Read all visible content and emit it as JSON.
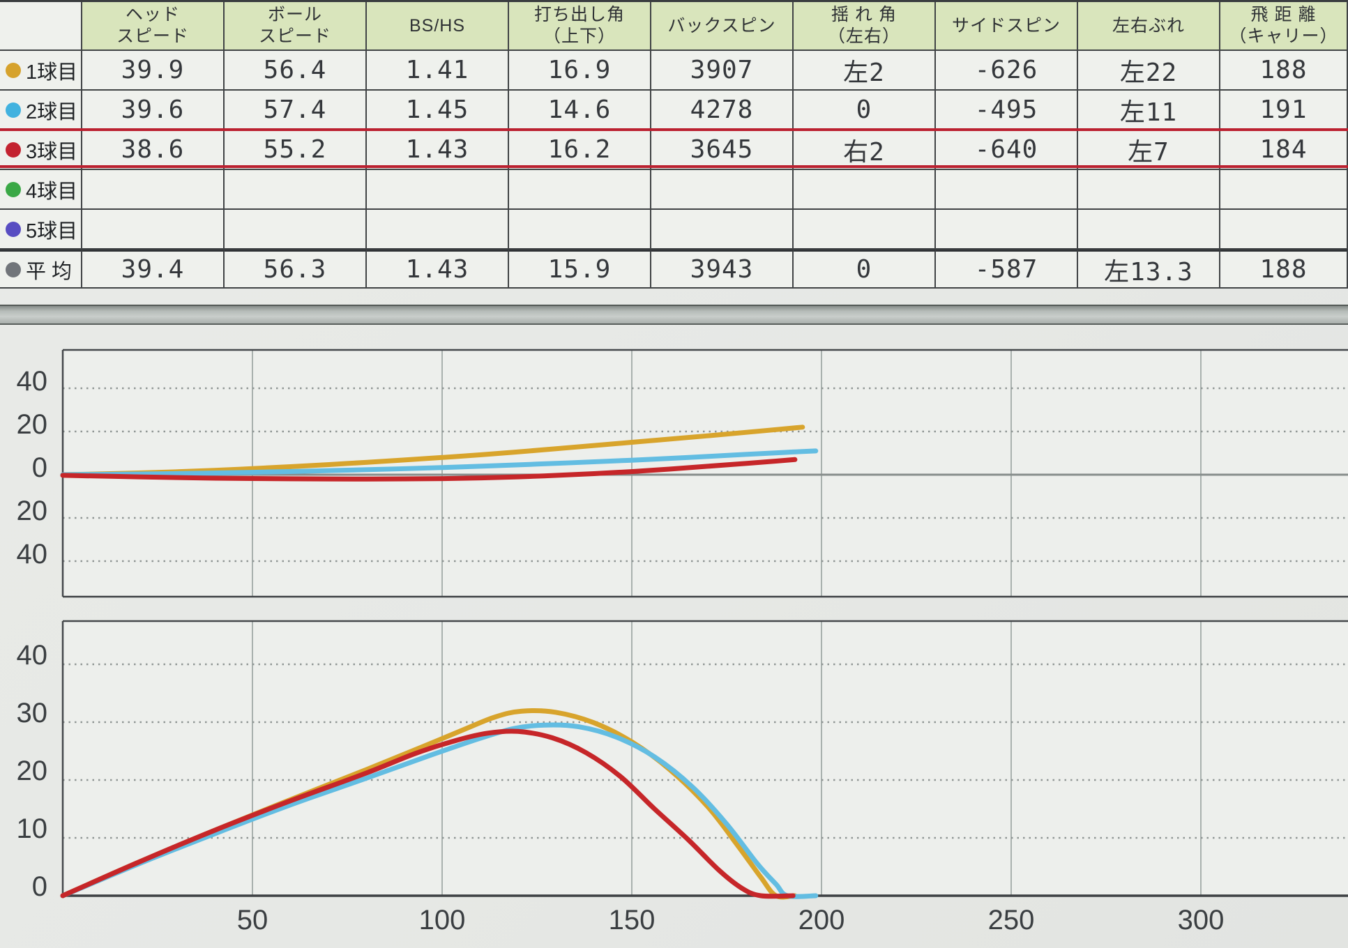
{
  "colors": {
    "header_bg": "#d9e5bc",
    "selection_red": "#bb2130",
    "grid_border": "#404345",
    "plot_bg": "#edefec",
    "dotted_grid": "#8f9694",
    "vertical_grid": "#a9b1ae",
    "zero_line": "#878d8b",
    "axis_text": "#3a3e41"
  },
  "table": {
    "corner_label": "",
    "columns": [
      {
        "id": "head_speed",
        "lines": [
          "ヘッド",
          "スピード"
        ]
      },
      {
        "id": "ball_speed",
        "lines": [
          "ボール",
          "スピード"
        ]
      },
      {
        "id": "bs_hs",
        "lines": [
          "BS/HS"
        ]
      },
      {
        "id": "launch_angle",
        "lines": [
          "打ち出し角",
          "（上下）"
        ]
      },
      {
        "id": "backspin",
        "lines": [
          "バックスピン"
        ]
      },
      {
        "id": "sway_angle",
        "lines": [
          "揺 れ 角",
          "（左右）"
        ]
      },
      {
        "id": "sidespin",
        "lines": [
          "サイドスピン"
        ]
      },
      {
        "id": "lr_deviation",
        "lines": [
          "左右ぶれ"
        ]
      },
      {
        "id": "carry",
        "lines": [
          "飛 距 離",
          "（キャリー）"
        ]
      }
    ],
    "rows": [
      {
        "label": "1球目",
        "dot_color": "#d6a22c",
        "selected": false,
        "average": false,
        "values": [
          "39.9",
          "56.4",
          "1.41",
          "16.9",
          "3907",
          "左2",
          "-626",
          "左22",
          "188"
        ]
      },
      {
        "label": "2球目",
        "dot_color": "#41b2df",
        "selected": false,
        "average": false,
        "values": [
          "39.6",
          "57.4",
          "1.45",
          "14.6",
          "4278",
          "0",
          "-495",
          "左11",
          "191"
        ]
      },
      {
        "label": "3球目",
        "dot_color": "#c32330",
        "selected": true,
        "average": false,
        "values": [
          "38.6",
          "55.2",
          "1.43",
          "16.2",
          "3645",
          "右2",
          "-640",
          "左7",
          "184"
        ]
      },
      {
        "label": "4球目",
        "dot_color": "#3aa846",
        "selected": false,
        "average": false,
        "values": [
          "",
          "",
          "",
          "",
          "",
          "",
          "",
          "",
          ""
        ]
      },
      {
        "label": "5球目",
        "dot_color": "#584dc2",
        "selected": false,
        "average": false,
        "values": [
          "",
          "",
          "",
          "",
          "",
          "",
          "",
          "",
          ""
        ]
      },
      {
        "label": "平 均",
        "dot_color": "#71757a",
        "selected": false,
        "average": true,
        "values": [
          "39.4",
          "56.3",
          "1.43",
          "15.9",
          "3943",
          "0",
          "-587",
          "左13.3",
          "188"
        ]
      }
    ]
  },
  "chart_data": [
    {
      "id": "top_view",
      "type": "line",
      "title": "",
      "xlabel": "",
      "ylabel": "",
      "x_unit": "yard",
      "x_gridlines": [
        50,
        100,
        150,
        200,
        250,
        300
      ],
      "x_tick_labels": [],
      "x_range": [
        0,
        340
      ],
      "y_ticks": [
        {
          "label": "40",
          "value": 40
        },
        {
          "label": "20",
          "value": 20
        },
        {
          "label": "0",
          "value": 0
        },
        {
          "label": "20",
          "value": -20
        },
        {
          "label": "40",
          "value": -40
        }
      ],
      "y_range": [
        -57,
        57
      ],
      "zero_line": true,
      "grid": "horizontal-dotted, vertical-solid",
      "legend": "none",
      "series": [
        {
          "name": "1球目",
          "color": "#d8a42c",
          "points": [
            [
              0,
              0
            ],
            [
              20,
              0.8
            ],
            [
              40,
              2
            ],
            [
              60,
              3.7
            ],
            [
              75,
              5.2
            ],
            [
              90,
              6.8
            ],
            [
              110,
              9.2
            ],
            [
              130,
              12
            ],
            [
              150,
              15
            ],
            [
              170,
              18
            ],
            [
              185,
              20.4
            ],
            [
              195,
              22
            ]
          ]
        },
        {
          "name": "2球目",
          "color": "#63bde2",
          "points": [
            [
              0,
              0
            ],
            [
              25,
              0.4
            ],
            [
              50,
              1.1
            ],
            [
              75,
              2.1
            ],
            [
              100,
              3.3
            ],
            [
              125,
              4.9
            ],
            [
              150,
              6.7
            ],
            [
              165,
              8
            ],
            [
              180,
              9.4
            ],
            [
              190,
              10.3
            ],
            [
              198.5,
              11
            ]
          ]
        },
        {
          "name": "3球目",
          "color": "#c62629",
          "points": [
            [
              0,
              -0.3
            ],
            [
              20,
              -1
            ],
            [
              40,
              -1.6
            ],
            [
              60,
              -1.9
            ],
            [
              80,
              -2
            ],
            [
              100,
              -1.8
            ],
            [
              120,
              -1
            ],
            [
              140,
              0.5
            ],
            [
              155,
              2
            ],
            [
              170,
              3.9
            ],
            [
              180,
              5.2
            ],
            [
              188,
              6.3
            ],
            [
              193,
              7
            ]
          ]
        }
      ]
    },
    {
      "id": "side_view",
      "type": "line",
      "title": "",
      "xlabel": "",
      "ylabel": "",
      "x_unit": "yard",
      "x_gridlines": [
        50,
        100,
        150,
        200,
        250,
        300
      ],
      "x_tick_labels": [
        "50",
        "100",
        "150",
        "200",
        "250",
        "300"
      ],
      "x_range": [
        0,
        340
      ],
      "y_ticks": [
        {
          "label": "40",
          "value": 40
        },
        {
          "label": "30",
          "value": 30
        },
        {
          "label": "20",
          "value": 20
        },
        {
          "label": "10",
          "value": 10
        },
        {
          "label": "0",
          "value": 0
        }
      ],
      "y_range": [
        0,
        47
      ],
      "zero_line": false,
      "grid": "horizontal-dotted, vertical-solid",
      "legend": "none",
      "series": [
        {
          "name": "1球目",
          "color": "#d8a42c",
          "points": [
            [
              0,
              0
            ],
            [
              20,
              5.8
            ],
            [
              40,
              11.3
            ],
            [
              60,
              16.6
            ],
            [
              80,
              21.8
            ],
            [
              95,
              25.8
            ],
            [
              106,
              28.8
            ],
            [
              114,
              30.9
            ],
            [
              121,
              31.9
            ],
            [
              130,
              31.7
            ],
            [
              140,
              29.9
            ],
            [
              150,
              26.6
            ],
            [
              160,
              21.8
            ],
            [
              170,
              15.4
            ],
            [
              178,
              8.6
            ],
            [
              184,
              3.2
            ],
            [
              188,
              0
            ],
            [
              193,
              0
            ]
          ]
        },
        {
          "name": "2球目",
          "color": "#63bde2",
          "points": [
            [
              0,
              0
            ],
            [
              20,
              5.5
            ],
            [
              40,
              10.7
            ],
            [
              60,
              15.7
            ],
            [
              80,
              20.3
            ],
            [
              97,
              24.3
            ],
            [
              110,
              27.2
            ],
            [
              119,
              28.9
            ],
            [
              127,
              29.5
            ],
            [
              136,
              29.2
            ],
            [
              146,
              27.4
            ],
            [
              156,
              24
            ],
            [
              166,
              18.8
            ],
            [
              175,
              12.4
            ],
            [
              183,
              5.6
            ],
            [
              188,
              2
            ],
            [
              191,
              0
            ],
            [
              198.5,
              0
            ]
          ]
        },
        {
          "name": "3球目",
          "color": "#c62629",
          "points": [
            [
              0,
              0
            ],
            [
              20,
              5.8
            ],
            [
              40,
              11.3
            ],
            [
              60,
              16.4
            ],
            [
              80,
              21.2
            ],
            [
              93,
              24.6
            ],
            [
              104,
              26.9
            ],
            [
              112,
              28.1
            ],
            [
              120,
              28.4
            ],
            [
              129,
              27.3
            ],
            [
              138,
              24.7
            ],
            [
              147,
              20.6
            ],
            [
              156,
              15
            ],
            [
              165,
              9.6
            ],
            [
              173,
              4.4
            ],
            [
              179,
              1.3
            ],
            [
              184,
              0
            ],
            [
              192.5,
              0
            ]
          ]
        }
      ]
    }
  ]
}
